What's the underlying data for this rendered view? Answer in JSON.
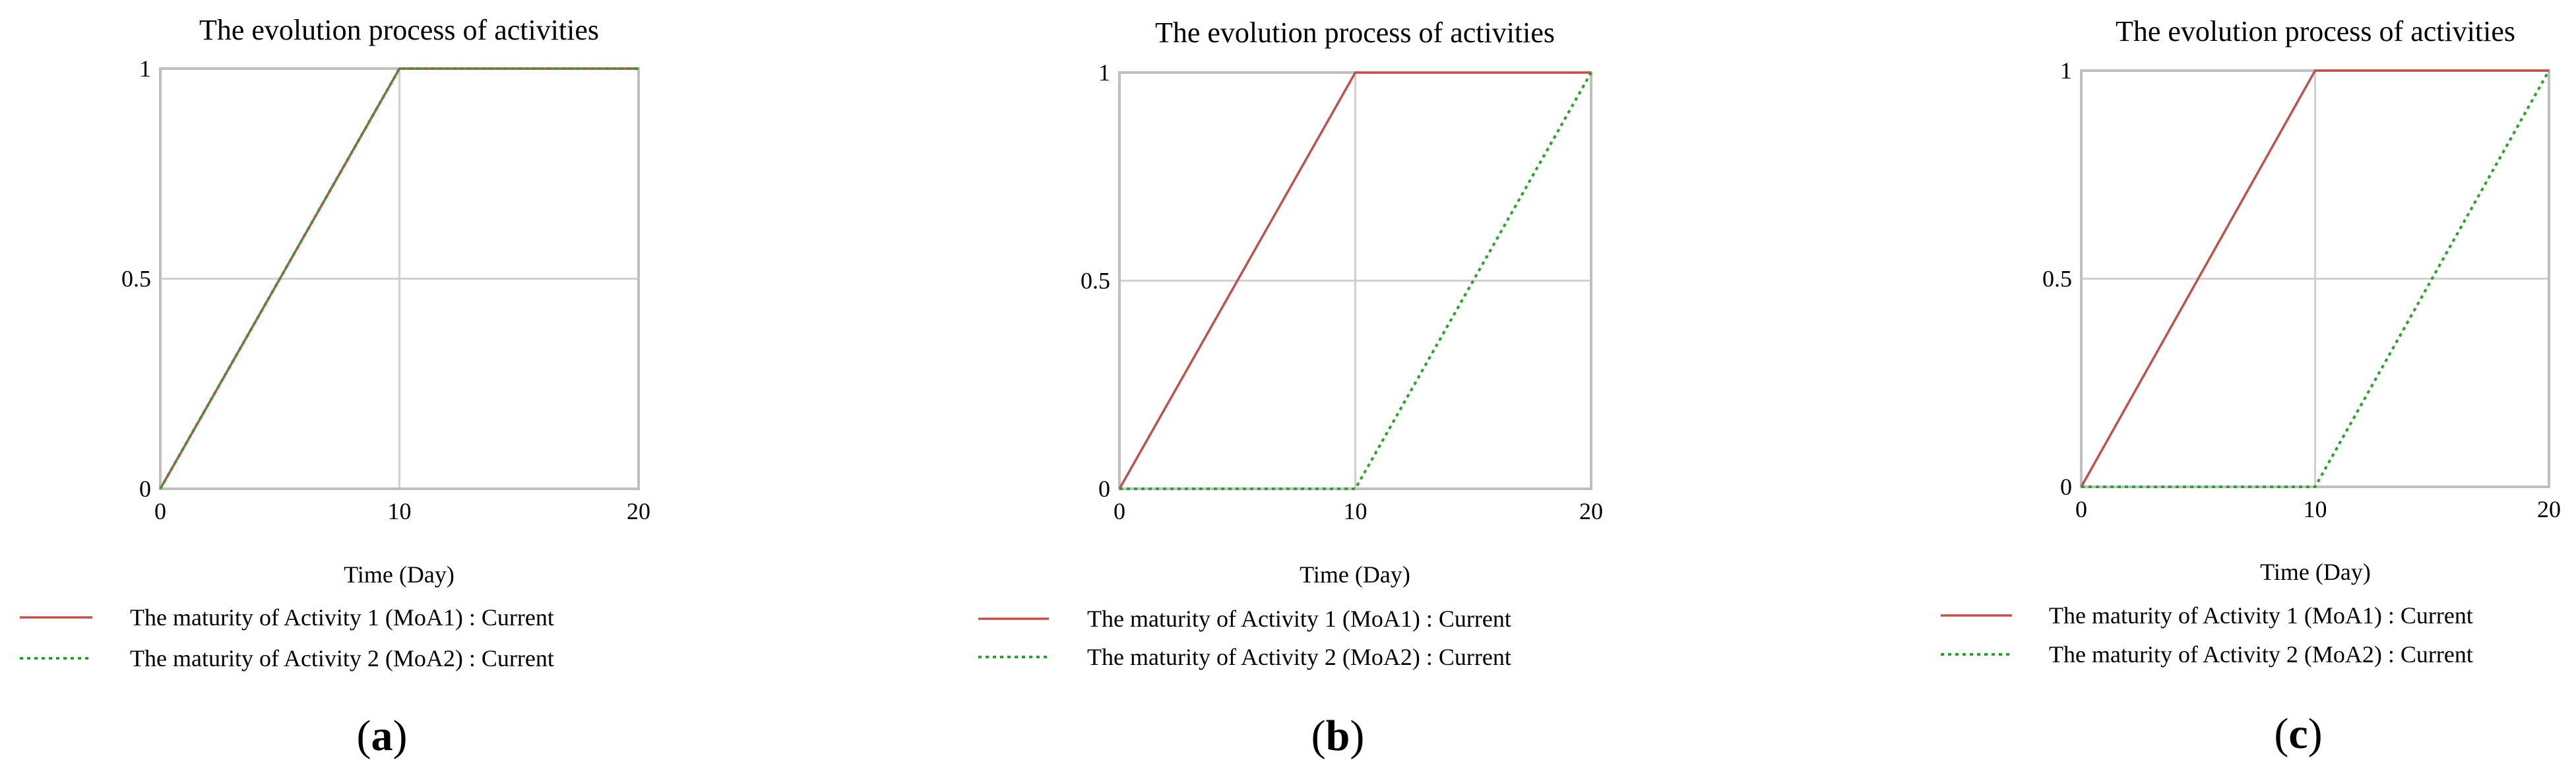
{
  "figure": {
    "panels": [
      {
        "label_letter": "a",
        "label_open": "(",
        "label_close": ")"
      },
      {
        "label_letter": "b",
        "label_open": "(",
        "label_close": ")"
      },
      {
        "label_letter": "c",
        "label_open": "(",
        "label_close": ")"
      }
    ]
  },
  "colors": {
    "series_1": "#c0504d",
    "series_2": "#2ca02c",
    "grid": "#d0d0d0",
    "frame": "#bfbfbf"
  },
  "chart_data": [
    {
      "type": "line",
      "title": "The evolution process of activities",
      "xlabel": "Time (Day)",
      "ylabel": "",
      "xlim": [
        0,
        20
      ],
      "ylim": [
        0,
        1
      ],
      "x_ticks": [
        "0",
        "10",
        "20"
      ],
      "y_ticks": [
        "0",
        "0.5",
        "1"
      ],
      "grid": true,
      "legend_position": "bottom",
      "series": [
        {
          "name": "The maturity of Activity 1 (MoA1) : Current",
          "style": "solid",
          "x": [
            0,
            10,
            20
          ],
          "y": [
            0,
            1,
            1
          ]
        },
        {
          "name": "The maturity of Activity 2 (MoA2) : Current",
          "style": "dotted",
          "x": [
            0,
            10,
            20
          ],
          "y": [
            0,
            1,
            1
          ]
        }
      ]
    },
    {
      "type": "line",
      "title": "The evolution process of activities",
      "xlabel": "Time (Day)",
      "ylabel": "",
      "xlim": [
        0,
        20
      ],
      "ylim": [
        0,
        1
      ],
      "x_ticks": [
        "0",
        "10",
        "20"
      ],
      "y_ticks": [
        "0",
        "0.5",
        "1"
      ],
      "grid": true,
      "legend_position": "bottom",
      "series": [
        {
          "name": "The maturity of Activity 1 (MoA1) : Current",
          "style": "solid",
          "x": [
            0,
            10,
            20
          ],
          "y": [
            0,
            1,
            1
          ]
        },
        {
          "name": "The maturity of Activity 2 (MoA2) : Current",
          "style": "dotted",
          "x": [
            0,
            10,
            20
          ],
          "y": [
            0,
            0,
            1
          ]
        }
      ]
    },
    {
      "type": "line",
      "title": "The evolution process of activities",
      "xlabel": "Time (Day)",
      "ylabel": "",
      "xlim": [
        0,
        20
      ],
      "ylim": [
        0,
        1
      ],
      "x_ticks": [
        "0",
        "10",
        "20"
      ],
      "y_ticks": [
        "0",
        "0.5",
        "1"
      ],
      "grid": true,
      "legend_position": "bottom",
      "series": [
        {
          "name": "The maturity of Activity 1 (MoA1) : Current",
          "style": "solid",
          "x": [
            0,
            10,
            20
          ],
          "y": [
            0,
            1,
            1
          ]
        },
        {
          "name": "The maturity of Activity 2 (MoA2) : Current",
          "style": "dotted",
          "x": [
            0,
            10,
            20
          ],
          "y": [
            0,
            0,
            1
          ]
        }
      ]
    }
  ]
}
